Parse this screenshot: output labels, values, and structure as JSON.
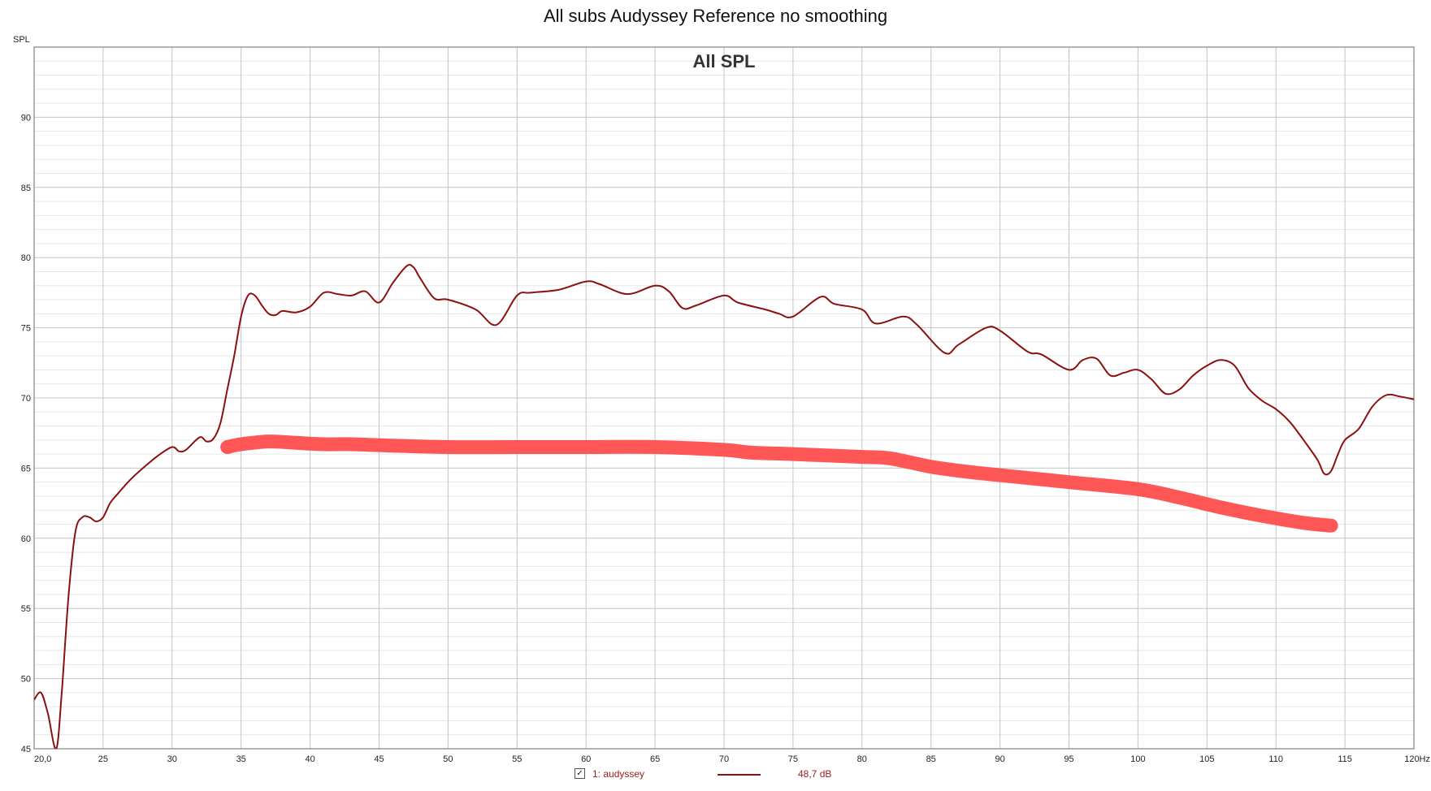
{
  "title": "All subs Audyssey Reference no smoothing",
  "chart_data": {
    "type": "line",
    "title": "All SPL",
    "ylabel": "SPL",
    "xlim": [
      20,
      120
    ],
    "ylim": [
      45,
      95
    ],
    "x_tick_labels": [
      "20,0",
      "25",
      "30",
      "35",
      "40",
      "45",
      "50",
      "55",
      "60",
      "65",
      "70",
      "75",
      "80",
      "85",
      "90",
      "95",
      "100",
      "105",
      "110",
      "115",
      "120Hz"
    ],
    "y_tick_labels": [
      "45",
      "50",
      "55",
      "60",
      "65",
      "70",
      "75",
      "80",
      "85",
      "90"
    ],
    "series": [
      {
        "name": "1: audyssey",
        "color": "#8b1010",
        "x": [
          20,
          20.5,
          21,
          21.6,
          22,
          22.5,
          23,
          23.5,
          24,
          24.5,
          25,
          25.5,
          26,
          27,
          28,
          29,
          30,
          30.5,
          31,
          32,
          32.5,
          33,
          33.5,
          34,
          34.5,
          35,
          35.5,
          36,
          36.5,
          37,
          37.5,
          38,
          39,
          40,
          41,
          42,
          43,
          44,
          45,
          46,
          47,
          47.5,
          48,
          49,
          50,
          52,
          53.5,
          55,
          56,
          58,
          60,
          61,
          63,
          65,
          66,
          67,
          68,
          70,
          71,
          73,
          74,
          75,
          77,
          78,
          80,
          81,
          83,
          84,
          86,
          87,
          89,
          90,
          92,
          93,
          95,
          96,
          97,
          98,
          99,
          100,
          101,
          102,
          103,
          104,
          105,
          106,
          107,
          108,
          109,
          110,
          111,
          112,
          113,
          113.5,
          114,
          114.5,
          115,
          116,
          117,
          118,
          119,
          120
        ],
        "y": [
          48.5,
          49,
          47.5,
          45,
          49,
          56,
          60.5,
          61.5,
          61.5,
          61.2,
          61.5,
          62.5,
          63.1,
          64.2,
          65.1,
          65.9,
          66.5,
          66.2,
          66.3,
          67.2,
          66.9,
          67.1,
          68.2,
          70.6,
          73,
          75.8,
          77.3,
          77.3,
          76.6,
          76,
          75.9,
          76.2,
          76.1,
          76.5,
          77.5,
          77.4,
          77.3,
          77.6,
          76.8,
          78.2,
          79.4,
          79.3,
          78.5,
          77.1,
          77,
          76.3,
          75.2,
          77.3,
          77.5,
          77.7,
          78.3,
          78.1,
          77.4,
          78,
          77.6,
          76.4,
          76.6,
          77.3,
          76.8,
          76.3,
          76,
          75.8,
          77.2,
          76.7,
          76.3,
          75.3,
          75.8,
          75.2,
          73.2,
          73.8,
          75,
          74.8,
          73.3,
          73.1,
          72,
          72.7,
          72.8,
          71.6,
          71.8,
          72,
          71.3,
          70.3,
          70.6,
          71.6,
          72.3,
          72.7,
          72.3,
          70.7,
          69.8,
          69.2,
          68.3,
          67,
          65.6,
          64.6,
          64.8,
          66,
          67,
          67.8,
          69.4,
          70.2,
          70.1,
          69.9
        ]
      }
    ],
    "annotation_stroke": {
      "color": "#ff4d4d",
      "x": [
        34,
        35,
        37,
        39,
        41,
        43,
        46,
        50,
        55,
        60,
        65,
        70,
        72,
        75,
        80,
        82,
        85,
        88,
        91,
        95,
        100,
        103,
        106,
        109,
        112,
        114
      ],
      "y": [
        66.5,
        66.7,
        66.9,
        66.8,
        66.7,
        66.7,
        66.6,
        66.5,
        66.5,
        66.5,
        66.5,
        66.3,
        66.1,
        66,
        65.8,
        65.7,
        65.1,
        64.7,
        64.4,
        64,
        63.5,
        62.9,
        62.2,
        61.6,
        61.1,
        60.9
      ]
    },
    "legend": {
      "checked": true,
      "series_name": "1: audyssey",
      "value": "48,7 dB",
      "placement": "bottom-center"
    },
    "grid": true
  }
}
